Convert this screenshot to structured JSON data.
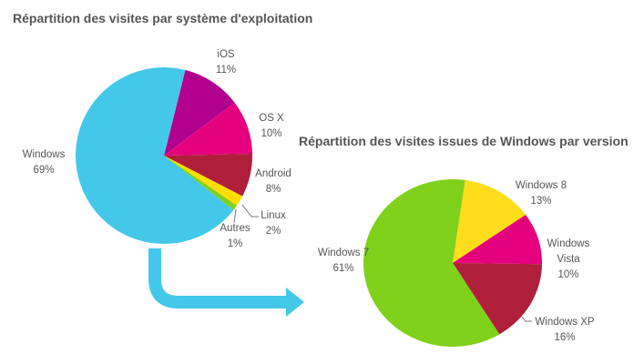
{
  "chart_data": [
    {
      "type": "pie",
      "title": "Répartition des visites par système d'exploitation",
      "slices": [
        {
          "name": "iOS",
          "label": "11%",
          "value": 11,
          "color": "#b2008e"
        },
        {
          "name": "OS X",
          "label": "10%",
          "value": 10,
          "color": "#e5007d"
        },
        {
          "name": "Android",
          "label": "8%",
          "value": 8,
          "color": "#b01f3a"
        },
        {
          "name": "Linux",
          "label": "2%",
          "value": 2,
          "color": "#ffdd00"
        },
        {
          "name": "Autres",
          "label": "1%",
          "value": 1,
          "color": "#7fd11b"
        },
        {
          "name": "Windows",
          "label": "69%",
          "value": 69,
          "color": "#44c8ea"
        }
      ]
    },
    {
      "type": "pie",
      "title": "Répartition des visites issues de Windows par version",
      "slices": [
        {
          "name": "Windows 8",
          "label": "13%",
          "value": 13,
          "color": "#ffdd1a"
        },
        {
          "name": "Windows Vista",
          "label": "10%",
          "value": 10,
          "color": "#e5007d"
        },
        {
          "name": "Windows XP",
          "label": "16%",
          "value": 16,
          "color": "#b01f3a"
        },
        {
          "name": "Windows 7",
          "label": "61%",
          "value": 61,
          "color": "#7fd11b"
        }
      ]
    }
  ],
  "connector": {
    "color": "#44c8ea"
  }
}
